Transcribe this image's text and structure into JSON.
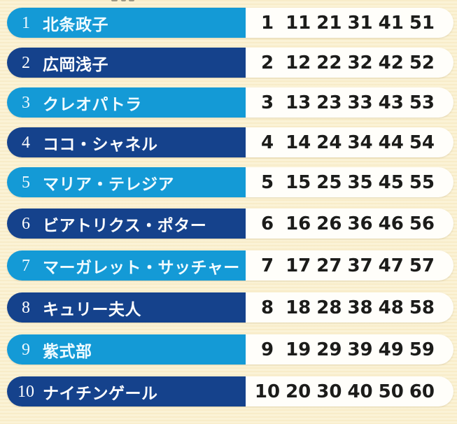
{
  "colors": {
    "background_cream": "#faf1d3",
    "label_light_blue": "#149ad6",
    "label_dark_blue": "#15428c",
    "pill_white": "#fffefa",
    "number_text": "#1c1c1a",
    "label_text": "#ffffff"
  },
  "rows": [
    {
      "rank": "1",
      "name": "北条政子",
      "variant": "light",
      "numbers": [
        "1",
        "11",
        "21",
        "31",
        "41",
        "51"
      ]
    },
    {
      "rank": "2",
      "name": "広岡浅子",
      "variant": "dark",
      "numbers": [
        "2",
        "12",
        "22",
        "32",
        "42",
        "52"
      ]
    },
    {
      "rank": "3",
      "name": "クレオパトラ",
      "variant": "light",
      "numbers": [
        "3",
        "13",
        "23",
        "33",
        "43",
        "53"
      ]
    },
    {
      "rank": "4",
      "name": "ココ・シャネル",
      "variant": "dark",
      "numbers": [
        "4",
        "14",
        "24",
        "34",
        "44",
        "54"
      ]
    },
    {
      "rank": "5",
      "name": "マリア・テレジア",
      "variant": "light",
      "numbers": [
        "5",
        "15",
        "25",
        "35",
        "45",
        "55"
      ]
    },
    {
      "rank": "6",
      "name": "ビアトリクス・ポター",
      "variant": "dark",
      "numbers": [
        "6",
        "16",
        "26",
        "36",
        "46",
        "56"
      ]
    },
    {
      "rank": "7",
      "name": "マーガレット・サッチャー",
      "variant": "light",
      "numbers": [
        "7",
        "17",
        "27",
        "37",
        "47",
        "57"
      ]
    },
    {
      "rank": "8",
      "name": "キュリー夫人",
      "variant": "dark",
      "numbers": [
        "8",
        "18",
        "28",
        "38",
        "48",
        "58"
      ]
    },
    {
      "rank": "9",
      "name": "紫式部",
      "variant": "light",
      "numbers": [
        "9",
        "19",
        "29",
        "39",
        "49",
        "59"
      ]
    },
    {
      "rank": "10",
      "name": "ナイチンゲール",
      "variant": "dark",
      "numbers": [
        "10",
        "20",
        "30",
        "40",
        "50",
        "60"
      ]
    }
  ]
}
